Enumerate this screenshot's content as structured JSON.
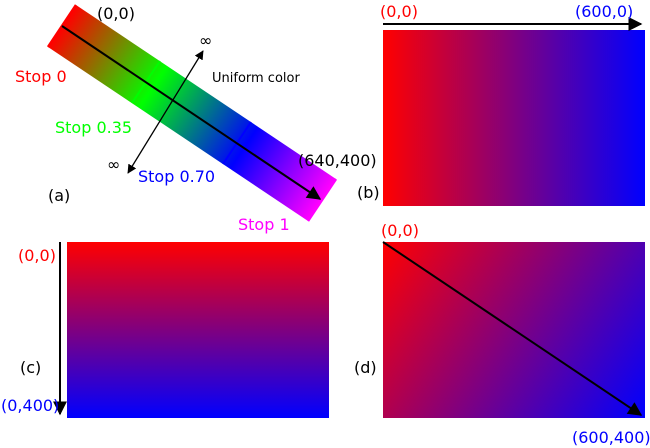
{
  "panel_a": {
    "label": "(a)",
    "start_coord": "(0,0)",
    "end_coord": "(640,400)",
    "infinity_top": "∞",
    "infinity_bottom": "∞",
    "perpendicular_note": "Uniform color",
    "stops": [
      {
        "label": "Stop 0",
        "color": "#ff0000"
      },
      {
        "label": "Stop 0.35",
        "color": "#00ff00"
      },
      {
        "label": "Stop 0.70",
        "color": "#0000ff"
      },
      {
        "label": "Stop 1",
        "color": "#ff00ff"
      }
    ]
  },
  "panel_b": {
    "label": "(b)",
    "start_coord": "(0,0)",
    "end_coord": "(600,0)",
    "start_color": "#ff0000",
    "end_color": "#0000ff"
  },
  "panel_c": {
    "label": "(c)",
    "start_coord": "(0,0)",
    "end_coord": "(0,400)",
    "start_color": "#ff0000",
    "end_color": "#0000ff"
  },
  "panel_d": {
    "label": "(d)",
    "start_coord": "(0,0)",
    "end_coord": "(600,400)",
    "start_color": "#ff0000",
    "end_color": "#0000ff"
  }
}
